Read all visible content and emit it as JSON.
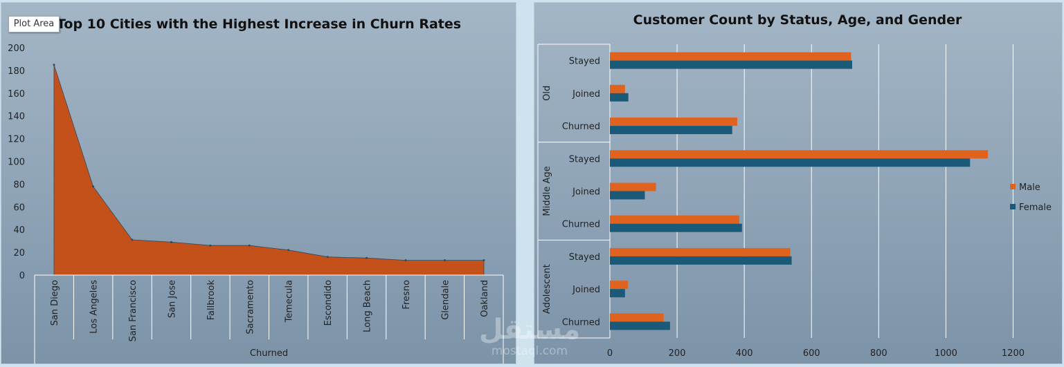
{
  "tooltip": {
    "label": "Plot Area"
  },
  "watermark": {
    "main": "مستقل",
    "sub": "mostaql.com"
  },
  "colors": {
    "churn_area": "#c4501a",
    "male": "#e0621f",
    "female": "#1a5a78",
    "gridline": "#ffffff"
  },
  "chart_data": [
    {
      "type": "area",
      "title": "Top 10 Cities with the Highest Increase in Churn Rates",
      "xlabel": "Churned",
      "ylabel": "",
      "categories": [
        "San Diego",
        "Los Angeles",
        "San Francisco",
        "San Jose",
        "Fallbrook",
        "Sacramento",
        "Temecula",
        "Escondido",
        "Long Beach",
        "Fresno",
        "Glendale",
        "Oakland"
      ],
      "values": [
        185,
        78,
        31,
        29,
        26,
        26,
        22,
        16,
        15,
        13,
        13,
        13
      ],
      "ylim": [
        0,
        200
      ],
      "yticks": [
        0,
        20,
        40,
        60,
        80,
        100,
        120,
        140,
        160,
        180,
        200
      ],
      "grid": false
    },
    {
      "type": "bar",
      "orientation": "horizontal",
      "title": "Customer Count by Status, Age, and Gender",
      "groups": [
        {
          "name": "Old",
          "categories": [
            "Stayed",
            "Joined",
            "Churned"
          ]
        },
        {
          "name": "Middle Age",
          "categories": [
            "Stayed",
            "Joined",
            "Churned"
          ]
        },
        {
          "name": "Adolescent",
          "categories": [
            "Stayed",
            "Joined",
            "Churned"
          ]
        }
      ],
      "series": [
        {
          "name": "Male",
          "values": [
            718,
            45,
            379,
            1125,
            137,
            385,
            537,
            54,
            160
          ]
        },
        {
          "name": "Female",
          "values": [
            721,
            55,
            364,
            1072,
            104,
            393,
            541,
            45,
            179
          ]
        }
      ],
      "xlim": [
        0,
        1300
      ],
      "xticks": [
        0,
        200,
        400,
        600,
        800,
        1000,
        1200
      ],
      "grid": true,
      "legend_position": "right"
    }
  ]
}
